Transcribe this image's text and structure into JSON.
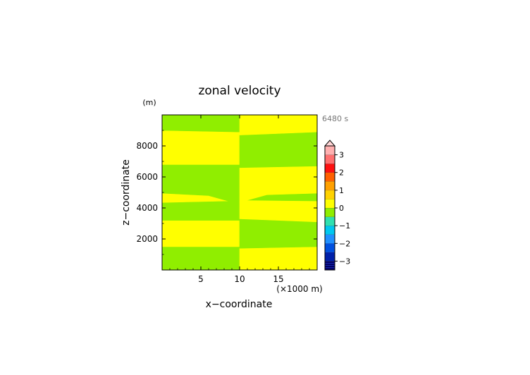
{
  "chart_data": {
    "type": "heatmap",
    "title": "zonal velocity",
    "xlabel": "x−coordinate",
    "ylabel": "z−coordinate",
    "y_unit": "(m)",
    "x_unit": "(×1000 m)",
    "time_label": "6480 s",
    "xlim": [
      0,
      20
    ],
    "ylim": [
      0,
      10000
    ],
    "x_ticks": [
      {
        "v": 5,
        "label": "5"
      },
      {
        "v": 10,
        "label": "10"
      },
      {
        "v": 15,
        "label": "15"
      }
    ],
    "y_ticks": [
      {
        "v": 2000,
        "label": "2000"
      },
      {
        "v": 4000,
        "label": "4000"
      },
      {
        "v": 6000,
        "label": "6000"
      },
      {
        "v": 8000,
        "label": "8000"
      }
    ],
    "colorbar": {
      "min": -3.5,
      "max": 3.5,
      "step": 0.5,
      "colors": [
        "#000066",
        "#0020aa",
        "#0050e0",
        "#2090ff",
        "#00c8f0",
        "#30e0b0",
        "#90ee00",
        "#ffff00",
        "#ffd200",
        "#ffa000",
        "#ff6000",
        "#ff1010",
        "#ff7070",
        "#ffb0b0"
      ],
      "ticks": [
        {
          "v": 3,
          "label": "3"
        },
        {
          "v": 2,
          "label": "2"
        },
        {
          "v": 1,
          "label": "1"
        },
        {
          "v": 0,
          "label": "0"
        },
        {
          "v": -1,
          "label": "−1"
        },
        {
          "v": -2,
          "label": "−2"
        },
        {
          "v": -3,
          "label": "−3"
        }
      ],
      "over_arrow_color": "#ffd4d4"
    },
    "regions": [
      {
        "value": 0.25,
        "color": "#90ee00",
        "polygon": [
          [
            0,
            0
          ],
          [
            10,
            0
          ],
          [
            10,
            1500
          ],
          [
            0,
            1500
          ]
        ]
      },
      {
        "value": 0.75,
        "color": "#ffff00",
        "polygon": [
          [
            0,
            1500
          ],
          [
            10,
            1500
          ],
          [
            10,
            3200
          ],
          [
            0,
            3200
          ]
        ]
      },
      {
        "value": 0.25,
        "color": "#90ee00",
        "polygon": [
          [
            0,
            3200
          ],
          [
            10,
            3200
          ],
          [
            10,
            4200
          ],
          [
            8.5,
            4450
          ],
          [
            0,
            4350
          ]
        ]
      },
      {
        "value": 0.75,
        "color": "#ffff00",
        "polygon": [
          [
            0,
            4350
          ],
          [
            8.5,
            4450
          ],
          [
            6,
            4800
          ],
          [
            0,
            4950
          ]
        ]
      },
      {
        "value": 0.25,
        "color": "#90ee00",
        "polygon": [
          [
            0,
            4950
          ],
          [
            6,
            4800
          ],
          [
            8.5,
            4450
          ],
          [
            10,
            4200
          ],
          [
            10,
            6800
          ],
          [
            0,
            6800
          ]
        ]
      },
      {
        "value": 0.75,
        "color": "#ffff00",
        "polygon": [
          [
            0,
            6800
          ],
          [
            10,
            6800
          ],
          [
            10,
            8900
          ],
          [
            0,
            9000
          ]
        ]
      },
      {
        "value": 0.25,
        "color": "#90ee00",
        "polygon": [
          [
            0,
            9000
          ],
          [
            10,
            8900
          ],
          [
            10,
            10000
          ],
          [
            0,
            10000
          ]
        ]
      },
      {
        "value": 0.75,
        "color": "#ffff00",
        "polygon": [
          [
            10,
            0
          ],
          [
            20,
            0
          ],
          [
            20,
            1500
          ],
          [
            10,
            1400
          ]
        ]
      },
      {
        "value": 0.25,
        "color": "#90ee00",
        "polygon": [
          [
            10,
            1400
          ],
          [
            20,
            1500
          ],
          [
            20,
            3100
          ],
          [
            10,
            3300
          ]
        ]
      },
      {
        "value": 0.75,
        "color": "#ffff00",
        "polygon": [
          [
            10,
            3300
          ],
          [
            20,
            3100
          ],
          [
            20,
            4450
          ],
          [
            11,
            4500
          ],
          [
            10,
            4400
          ]
        ]
      },
      {
        "value": 0.25,
        "color": "#90ee00",
        "polygon": [
          [
            11,
            4500
          ],
          [
            20,
            4450
          ],
          [
            20,
            4950
          ],
          [
            13.5,
            4850
          ]
        ]
      },
      {
        "value": 0.75,
        "color": "#ffff00",
        "polygon": [
          [
            10,
            4400
          ],
          [
            11,
            4500
          ],
          [
            13.5,
            4850
          ],
          [
            20,
            4950
          ],
          [
            20,
            6700
          ],
          [
            10,
            6600
          ]
        ]
      },
      {
        "value": 0.25,
        "color": "#90ee00",
        "polygon": [
          [
            10,
            6600
          ],
          [
            20,
            6700
          ],
          [
            20,
            8900
          ],
          [
            10,
            8700
          ]
        ]
      },
      {
        "value": 0.75,
        "color": "#ffff00",
        "polygon": [
          [
            10,
            8700
          ],
          [
            20,
            8900
          ],
          [
            20,
            10000
          ],
          [
            10,
            10000
          ]
        ]
      }
    ]
  }
}
